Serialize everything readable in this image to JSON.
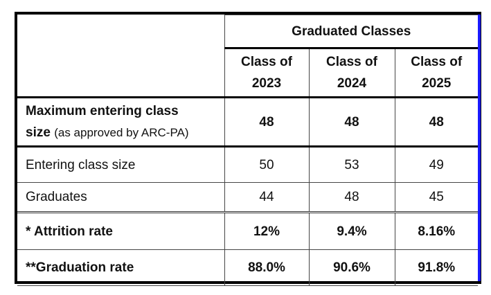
{
  "table": {
    "group_header": "Graduated Classes",
    "columns": [
      {
        "line1": "Class of",
        "line2": "2023"
      },
      {
        "line1": "Class of",
        "line2": "2024"
      },
      {
        "line1": "Class of",
        "line2": "2025"
      }
    ],
    "rows": [
      {
        "label_line1": "Maximum entering class",
        "label_line2": "size",
        "label_suffix": "(as approved by ARC-PA)",
        "values": [
          "48",
          "48",
          "48"
        ]
      },
      {
        "label": "Entering class size",
        "values": [
          "50",
          "53",
          "49"
        ]
      },
      {
        "label": "Graduates",
        "values": [
          "44",
          "48",
          "45"
        ]
      },
      {
        "label": "* Attrition rate",
        "values": [
          "12%",
          "9.4%",
          "8.16%"
        ]
      },
      {
        "label": "**Graduation rate",
        "values": [
          "88.0%",
          "90.6%",
          "91.8%"
        ]
      }
    ]
  },
  "colors": {
    "border": "#000000",
    "accent_edge": "#1a1aff",
    "text": "#111111"
  }
}
